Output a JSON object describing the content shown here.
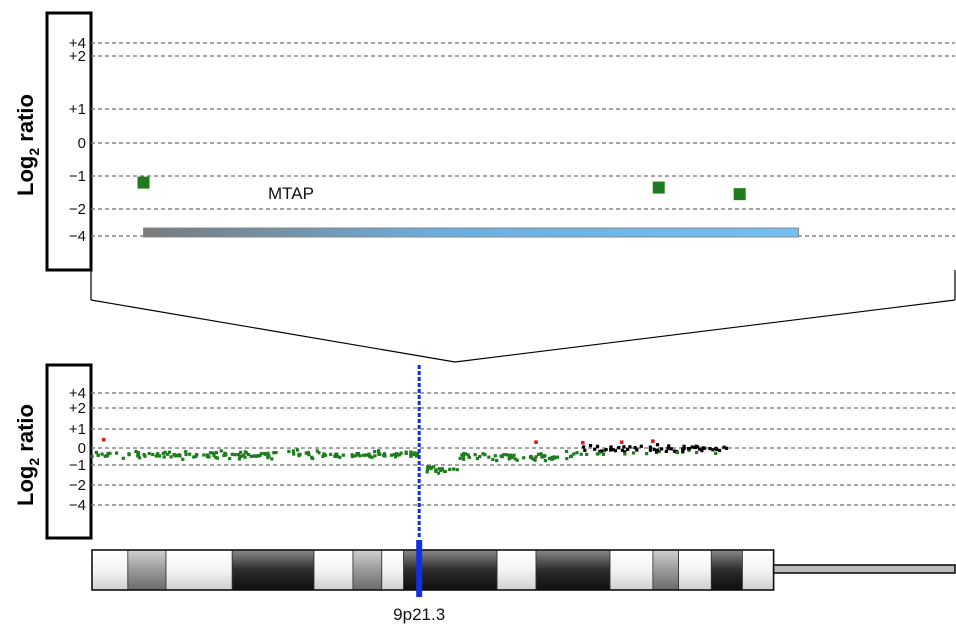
{
  "colors": {
    "loss": "#1e7b1e",
    "neutral": "#000000",
    "gain": "#e01818",
    "region_marker": "#1030e0",
    "gene_bar": "#6ab9ef"
  },
  "chart_data": [
    {
      "type": "scatter",
      "panel": "zoom",
      "ylabel_main": "Log",
      "ylabel_sub": "2",
      "ylabel_rest": " ratio",
      "y_ticks": [
        "+4",
        "+2",
        "+1",
        "0",
        "−1",
        "−2",
        "−4"
      ],
      "grid": "dashed",
      "gene": {
        "name": "MTAP",
        "start": 0.07,
        "end": 0.96
      },
      "points": [
        {
          "x": 0.07,
          "level": -1.2,
          "class": "loss"
        },
        {
          "x": 0.77,
          "level": -1.35,
          "class": "loss"
        },
        {
          "x": 0.88,
          "level": -1.55,
          "class": "loss"
        }
      ]
    },
    {
      "type": "scatter",
      "panel": "chromosome",
      "ylabel_main": "Log",
      "ylabel_sub": "2",
      "ylabel_rest": " ratio",
      "y_ticks": [
        "+4",
        "+2",
        "+1",
        "0",
        "−1",
        "−2",
        "−4"
      ],
      "grid": "dashed",
      "marker_position": 0.42,
      "band_label": "9p21.3",
      "series_regions": [
        {
          "start": 0.0,
          "end": 0.42,
          "level": -0.4,
          "class": "loss"
        },
        {
          "start": 0.42,
          "end": 0.47,
          "level": -1.2,
          "class": "loss"
        },
        {
          "start": 0.47,
          "end": 0.62,
          "level": -0.5,
          "class": "loss"
        },
        {
          "start": 0.62,
          "end": 0.82,
          "level": -0.05,
          "class": "neutral"
        }
      ],
      "gain_points": [
        0.015,
        0.57,
        0.63,
        0.68,
        0.72
      ],
      "ideogram_bands": [
        {
          "start": 0.0,
          "end": 0.046,
          "shade": "light"
        },
        {
          "start": 0.046,
          "end": 0.095,
          "shade": "mid"
        },
        {
          "start": 0.095,
          "end": 0.18,
          "shade": "light"
        },
        {
          "start": 0.18,
          "end": 0.285,
          "shade": "dark"
        },
        {
          "start": 0.285,
          "end": 0.335,
          "shade": "light"
        },
        {
          "start": 0.335,
          "end": 0.372,
          "shade": "mid"
        },
        {
          "start": 0.372,
          "end": 0.4,
          "shade": "light"
        },
        {
          "start": 0.4,
          "end": 0.52,
          "shade": "dark"
        },
        {
          "start": 0.52,
          "end": 0.57,
          "shade": "light"
        },
        {
          "start": 0.57,
          "end": 0.665,
          "shade": "dark"
        },
        {
          "start": 0.665,
          "end": 0.72,
          "shade": "light"
        },
        {
          "start": 0.72,
          "end": 0.753,
          "shade": "mid"
        },
        {
          "start": 0.753,
          "end": 0.795,
          "shade": "light"
        },
        {
          "start": 0.795,
          "end": 0.835,
          "shade": "dark"
        },
        {
          "start": 0.835,
          "end": 0.875,
          "shade": "light"
        }
      ]
    }
  ]
}
